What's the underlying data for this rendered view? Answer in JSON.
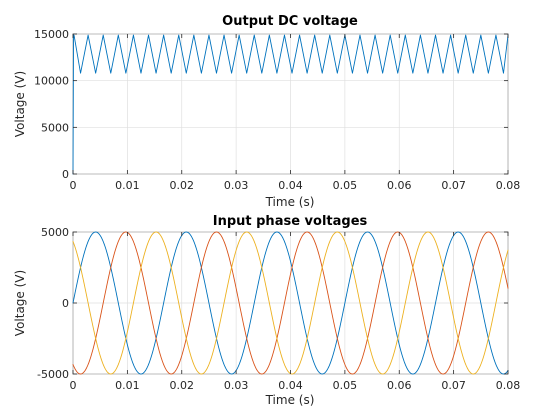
{
  "chart_data": [
    {
      "type": "line",
      "title": "Output DC voltage",
      "xlabel": "Time (s)",
      "ylabel": "Voltage (V)",
      "xlim": [
        0,
        0.08
      ],
      "ylim": [
        0,
        15000
      ],
      "xticks": [
        0,
        0.01,
        0.02,
        0.03,
        0.04,
        0.05,
        0.06,
        0.07,
        0.08
      ],
      "xtick_labels": [
        "0",
        "0.01",
        "0.02",
        "0.03",
        "0.04",
        "0.05",
        "0.06",
        "0.07",
        "0.08"
      ],
      "yticks": [
        0,
        5000,
        10000,
        15000
      ],
      "ytick_labels": [
        "0",
        "5000",
        "10000",
        "15000"
      ],
      "grid": true,
      "ripple_frequency_hz": 360,
      "ripple_min": 10800,
      "ripple_max": 14900,
      "series": [
        {
          "color": "#0072bd",
          "x": [
            0,
            0.0001,
            0.0002,
            0.0013889,
            0.0027778,
            0.0041667,
            0.0055556,
            0.0069444,
            0.0083333,
            0.0097222,
            0.0111111,
            0.0125,
            0.0138889,
            0.0152778,
            0.0166667,
            0.0180556,
            0.0194444,
            0.0208333,
            0.0222222,
            0.0236111,
            0.025,
            0.0263889,
            0.0277778,
            0.0291667,
            0.0305556,
            0.0319444,
            0.0333333,
            0.0347222,
            0.0361111,
            0.0375,
            0.0388889,
            0.0402778,
            0.0416667,
            0.0430556,
            0.0444444,
            0.0458333,
            0.0472222,
            0.0486111,
            0.05,
            0.0513889,
            0.0527778,
            0.0541667,
            0.0555556,
            0.0569444,
            0.0583333,
            0.0597222,
            0.0611111,
            0.0625,
            0.0638889,
            0.0652778,
            0.0666667,
            0.0680556,
            0.0694444,
            0.0708333,
            0.0722222,
            0.0736111,
            0.075,
            0.0763889,
            0.0777778,
            0.0791667,
            0.08
          ],
          "y": [
            0,
            14900,
            14850,
            10800,
            14880,
            10800,
            14880,
            10800,
            14880,
            10800,
            14880,
            10800,
            14880,
            10800,
            14880,
            10800,
            14880,
            10800,
            14880,
            10800,
            14880,
            10800,
            14880,
            10800,
            14880,
            10800,
            14880,
            10800,
            14880,
            10800,
            14880,
            10800,
            14880,
            10800,
            14880,
            10800,
            14880,
            10800,
            14880,
            10800,
            14880,
            10800,
            14880,
            10800,
            14880,
            10800,
            14880,
            10800,
            14880,
            10800,
            14880,
            10800,
            14880,
            10800,
            14880,
            10800,
            14880,
            10800,
            14880,
            10800,
            14880
          ]
        }
      ]
    },
    {
      "type": "line",
      "title": "Input phase voltages",
      "xlabel": "Time (s)",
      "ylabel": "Voltage (V)",
      "xlim": [
        0,
        0.08
      ],
      "ylim": [
        -5000,
        5000
      ],
      "xticks": [
        0,
        0.01,
        0.02,
        0.03,
        0.04,
        0.05,
        0.06,
        0.07,
        0.08
      ],
      "xtick_labels": [
        "0",
        "0.01",
        "0.02",
        "0.03",
        "0.04",
        "0.05",
        "0.06",
        "0.07",
        "0.08"
      ],
      "yticks": [
        -5000,
        0,
        5000
      ],
      "ytick_labels": [
        "-5000",
        "0",
        "5000"
      ],
      "grid": true,
      "frequency_hz": 60,
      "amplitude": 5000,
      "series": [
        {
          "color": "#0072bd",
          "phase_deg": 0
        },
        {
          "color": "#d95319",
          "phase_deg": -120
        },
        {
          "color": "#edb120",
          "phase_deg": 120
        }
      ]
    }
  ]
}
